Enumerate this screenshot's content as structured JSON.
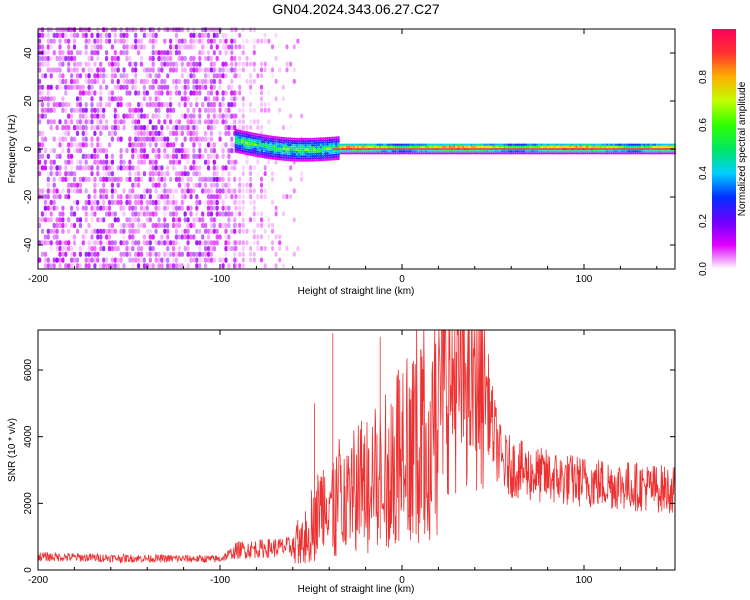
{
  "title": "GN04.2024.343.06.27.C27",
  "chart_data": [
    {
      "type": "heatmap",
      "xlabel": "Height of straight line (km)",
      "ylabel": "Frequency (Hz)",
      "xlim": [
        -200,
        150
      ],
      "ylim": [
        -50,
        50
      ],
      "x_ticks": [
        "-200",
        "-100",
        "0",
        "100"
      ],
      "y_ticks": [
        "-40",
        "-20",
        "0",
        "20",
        "40"
      ],
      "colorbar": {
        "label": "Normalized spectral amplitude",
        "range": [
          0,
          1
        ],
        "ticks": [
          "0.0",
          "0.2",
          "0.4",
          "0.6",
          "0.8"
        ],
        "colormap": [
          "#ffffff",
          "#e000ff",
          "#6a00ff",
          "#0030ff",
          "#00d0ff",
          "#00e860",
          "#30ff00",
          "#c0ff00",
          "#ffb000",
          "#ff3030",
          "#ff0060"
        ]
      },
      "features": {
        "broadband_noise_x_range": [
          -200,
          -92
        ],
        "sparse_noise_x_range": [
          -92,
          -55
        ],
        "narrow_band_start_x": -92,
        "narrow_band_frequency_at_start_hz": 3,
        "narrow_band_frequency_hz": 0,
        "strong_band_x_range": [
          -35,
          150
        ]
      }
    },
    {
      "type": "line",
      "xlabel": "Height of straight line (km)",
      "ylabel": "SNR (10 * v/v)",
      "xlim": [
        -200,
        150
      ],
      "ylim": [
        0,
        7200
      ],
      "x_ticks": [
        "-200",
        "-100",
        "0",
        "100"
      ],
      "y_ticks": [
        "0",
        "2000",
        "4000",
        "6000"
      ],
      "line_color": "#ee3030",
      "series": [
        {
          "x": [
            -200,
            -150,
            -100,
            -90,
            -60,
            -45,
            -30,
            -10,
            0,
            20,
            35,
            45,
            50,
            55,
            70,
            90,
            110,
            130,
            150
          ],
          "y": [
            400,
            350,
            330,
            600,
            700,
            2000,
            2700,
            3200,
            4300,
            5500,
            5900,
            5800,
            4200,
            3200,
            2900,
            2700,
            2600,
            2500,
            2400
          ]
        }
      ],
      "spikes": [
        {
          "x": -38,
          "y": 7100
        },
        {
          "x": -48,
          "y": 5000
        },
        {
          "x": -12,
          "y": 7000
        },
        {
          "x": 12,
          "y": 6200
        }
      ]
    }
  ]
}
